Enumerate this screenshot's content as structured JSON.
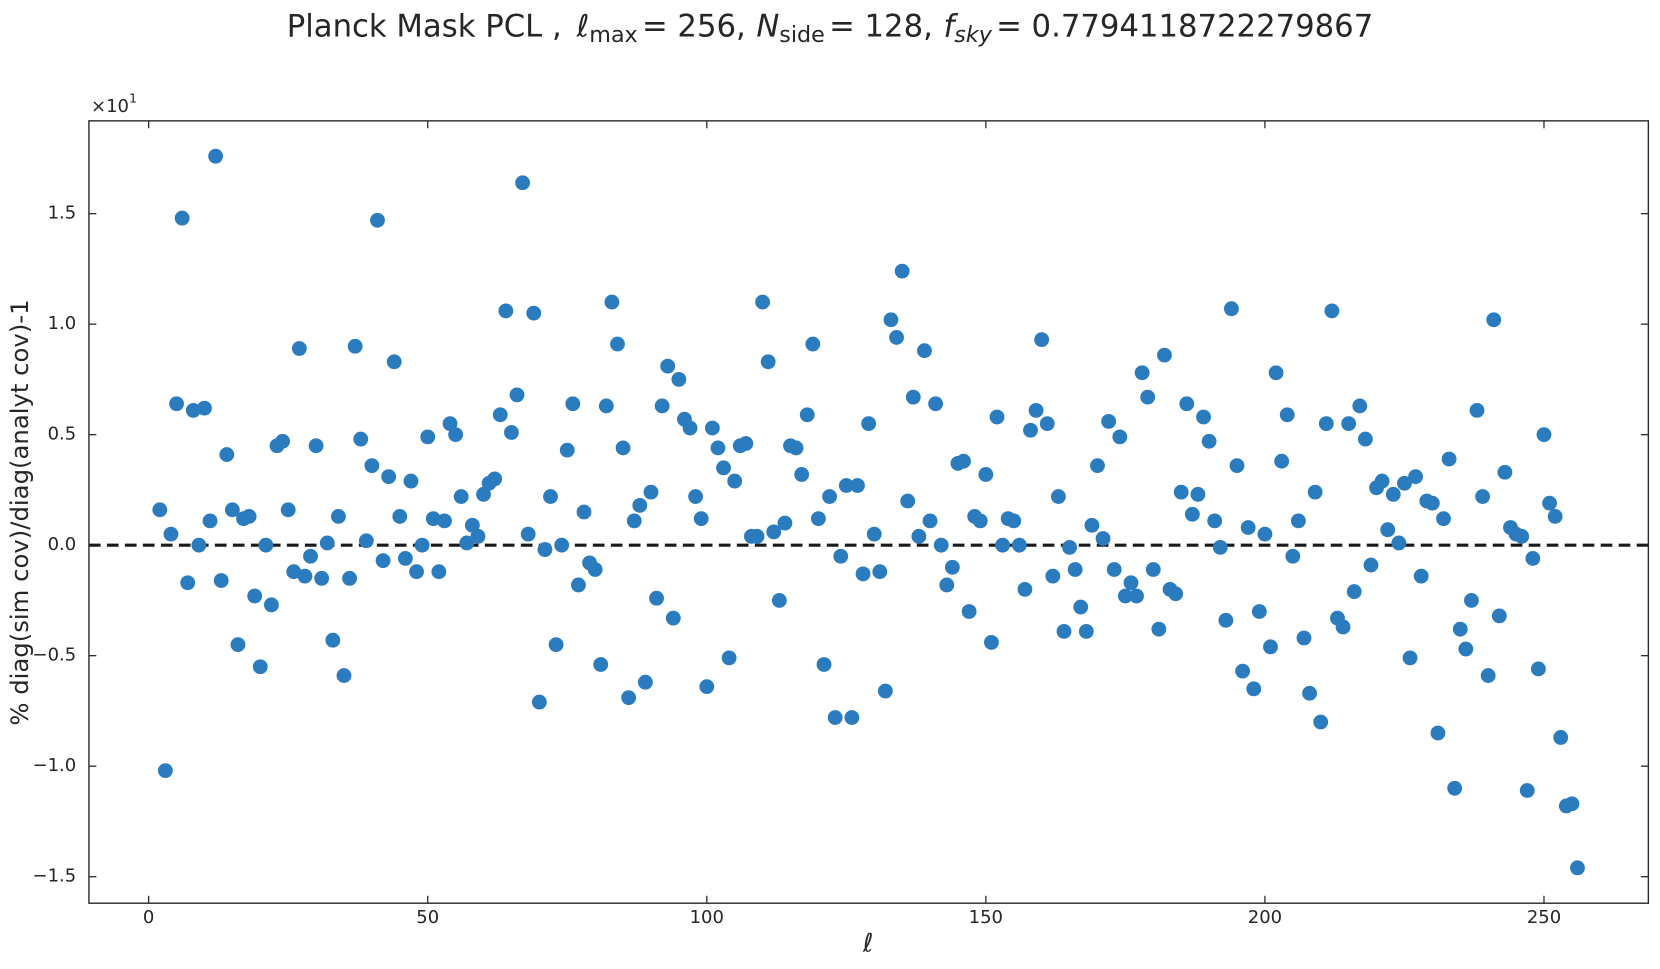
{
  "chart_data": {
    "type": "scatter",
    "title": [
      "Planck Mask PCL ,",
      "ℓ",
      "max",
      "= 256,",
      "N",
      "side",
      "= 128,",
      "f",
      "sky",
      "= 0.7794118722279867"
    ],
    "xlabel": "ℓ",
    "ylabel": "% diag(sim cov)/diag(analyt cov)-1",
    "y_offset_text": {
      "base": "×10",
      "exponent": "1"
    },
    "xlim": [
      -10.7,
      268.7
    ],
    "ylim": [
      -1.62,
      1.92
    ],
    "xticks": [
      0,
      50,
      100,
      150,
      200,
      250
    ],
    "yticks": [
      {
        "value": -1.5,
        "label": "−1.5"
      },
      {
        "value": -1.0,
        "label": "−1.0"
      },
      {
        "value": -0.5,
        "label": "−0.5"
      },
      {
        "value": 0.0,
        "label": "0.0"
      },
      0.5,
      {
        "value": 1.0,
        "label": "1.0"
      },
      1.5
    ],
    "reference_line": {
      "value": 0,
      "color": "#1a1a1a",
      "style": "dashed"
    },
    "series": [
      {
        "color": "#2b7bbf",
        "x": [
          2,
          3,
          4,
          5,
          6,
          7,
          8,
          9,
          10,
          11,
          12,
          13,
          14,
          15,
          16,
          17,
          18,
          19,
          20,
          21,
          22,
          23,
          24,
          25,
          26,
          27,
          28,
          29,
          30,
          31,
          32,
          33,
          34,
          35,
          36,
          37,
          38,
          39,
          40,
          41,
          42,
          43,
          44,
          45,
          46,
          47,
          48,
          49,
          50,
          51,
          52,
          53,
          54,
          55,
          56,
          57,
          58,
          59,
          60,
          61,
          62,
          63,
          64,
          65,
          66,
          67,
          68,
          69,
          70,
          71,
          72,
          73,
          74,
          75,
          76,
          77,
          78,
          79,
          80,
          81,
          82,
          83,
          84,
          85,
          86,
          87,
          88,
          89,
          90,
          91,
          92,
          93,
          94,
          95,
          96,
          97,
          98,
          99,
          100,
          101,
          102,
          103,
          104,
          105,
          106,
          107,
          108,
          109,
          110,
          111,
          112,
          113,
          114,
          115,
          116,
          117,
          118,
          119,
          120,
          121,
          122,
          123,
          124,
          125,
          126,
          127,
          128,
          129,
          130,
          131,
          132,
          133,
          134,
          135,
          136,
          137,
          138,
          139,
          140,
          141,
          142,
          143,
          144,
          145,
          146,
          147,
          148,
          149,
          150,
          151,
          152,
          153,
          154,
          155,
          156,
          157,
          158,
          159,
          160,
          161,
          162,
          163,
          164,
          165,
          166,
          167,
          168,
          169,
          170,
          171,
          172,
          173,
          174,
          175,
          176,
          177,
          178,
          179,
          180,
          181,
          182,
          183,
          184,
          185,
          186,
          187,
          188,
          189,
          190,
          191,
          192,
          193,
          194,
          195,
          196,
          197,
          198,
          199,
          200,
          201,
          202,
          203,
          204,
          205,
          206,
          207,
          208,
          209,
          210,
          211,
          212,
          213,
          214,
          215,
          216,
          217,
          218,
          219,
          220,
          221,
          222,
          223,
          224,
          225,
          226,
          227,
          228,
          229,
          230,
          231,
          232,
          233,
          234,
          235,
          236,
          237,
          238,
          239,
          240,
          241,
          242,
          243,
          244,
          245,
          246,
          247,
          248,
          249,
          250,
          251,
          252,
          253,
          254,
          255,
          256
        ],
        "values": [
          0.16,
          -1.02,
          0.05,
          0.64,
          1.48,
          -0.17,
          0.61,
          0.0,
          0.62,
          0.11,
          1.76,
          -0.16,
          0.41,
          0.16,
          -0.45,
          0.12,
          0.13,
          -0.23,
          -0.55,
          0.0,
          -0.27,
          0.45,
          0.47,
          0.16,
          -0.12,
          0.89,
          -0.14,
          -0.05,
          0.45,
          -0.15,
          0.01,
          -0.43,
          0.13,
          -0.59,
          -0.15,
          0.9,
          0.48,
          0.02,
          0.36,
          1.47,
          -0.07,
          0.31,
          0.83,
          0.13,
          -0.06,
          0.29,
          -0.12,
          0.0,
          0.49,
          0.12,
          -0.12,
          0.11,
          0.55,
          0.5,
          0.22,
          0.01,
          0.09,
          0.04,
          0.23,
          0.28,
          0.3,
          0.59,
          1.06,
          0.51,
          0.68,
          1.64,
          0.05,
          1.05,
          -0.71,
          -0.02,
          0.22,
          -0.45,
          0.0,
          0.43,
          0.64,
          -0.18,
          0.15,
          -0.08,
          -0.11,
          -0.54,
          0.63,
          1.1,
          0.91,
          0.44,
          -0.69,
          0.11,
          0.18,
          -0.62,
          0.24,
          -0.24,
          0.63,
          0.81,
          -0.33,
          0.75,
          0.57,
          0.53,
          0.22,
          0.12,
          -0.64,
          0.53,
          0.44,
          0.35,
          -0.51,
          0.29,
          0.45,
          0.46,
          0.04,
          0.04,
          1.1,
          0.83,
          0.06,
          -0.25,
          0.1,
          0.45,
          0.44,
          0.32,
          0.59,
          0.91,
          0.12,
          -0.54,
          0.22,
          -0.78,
          -0.05,
          0.27,
          -0.78,
          0.27,
          -0.13,
          0.55,
          0.05,
          -0.12,
          -0.66,
          1.02,
          0.94,
          1.24,
          0.2,
          0.67,
          0.04,
          0.88,
          0.11,
          0.64,
          0.0,
          -0.18,
          -0.1,
          0.37,
          0.38,
          -0.3,
          0.13,
          0.11,
          0.32,
          -0.44,
          0.58,
          0.0,
          0.12,
          0.11,
          0.0,
          -0.2,
          0.52,
          0.61,
          0.93,
          0.55,
          -0.14,
          0.22,
          -0.39,
          -0.01,
          -0.11,
          -0.28,
          -0.39,
          0.09,
          0.36,
          0.03,
          0.56,
          -0.11,
          0.49,
          -0.23,
          -0.17,
          -0.23,
          0.78,
          0.67,
          -0.11,
          -0.38,
          0.86,
          -0.2,
          -0.22,
          0.24,
          0.64,
          0.14,
          0.23,
          0.58,
          0.47,
          0.11,
          -0.01,
          -0.34,
          1.07,
          0.36,
          -0.57,
          0.08,
          -0.65,
          -0.3,
          0.05,
          -0.46,
          0.78,
          0.38,
          0.59,
          -0.05,
          0.11,
          -0.42,
          -0.67,
          0.24,
          -0.8,
          0.55,
          1.06,
          -0.33,
          -0.37,
          0.55,
          -0.21,
          0.63,
          0.48,
          -0.09,
          0.26,
          0.29,
          0.07,
          0.23,
          0.01,
          0.28,
          -0.51,
          0.31,
          -0.14,
          0.2,
          0.19,
          -0.85,
          0.12,
          0.39,
          -1.1,
          -0.38,
          -0.47,
          -0.25,
          0.61,
          0.22,
          -0.59,
          1.02,
          -0.32,
          0.33,
          0.08,
          0.05,
          0.04,
          -1.11,
          -0.06,
          -0.56,
          0.5,
          0.19,
          0.13,
          -0.87,
          -1.18,
          -1.17,
          -1.46
        ]
      }
    ]
  }
}
